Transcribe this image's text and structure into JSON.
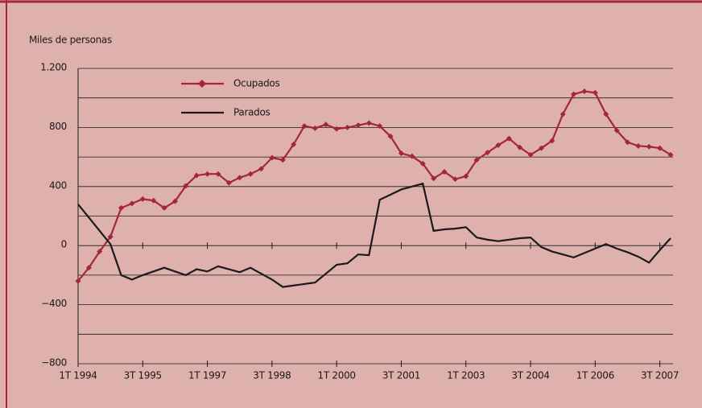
{
  "chart_data": {
    "type": "line",
    "y_axis_label": "Miles de personas",
    "categories": [
      "1T 1994",
      null,
      null,
      null,
      null,
      null,
      "3T 1995",
      null,
      null,
      null,
      null,
      null,
      "1T 1997",
      null,
      null,
      null,
      null,
      null,
      "3T 1998",
      null,
      null,
      null,
      null,
      null,
      "1T 2000",
      null,
      null,
      null,
      null,
      null,
      "3T 2001",
      null,
      null,
      null,
      null,
      null,
      "1T 2003",
      null,
      null,
      null,
      null,
      null,
      "3T 2004",
      null,
      null,
      null,
      null,
      null,
      "1T 2006",
      null,
      null,
      null,
      null,
      null,
      "3T 2007",
      null
    ],
    "series": [
      {
        "name": "Ocupados",
        "color": "#a3263a",
        "marker": "diamond",
        "values": [
          -240,
          -150,
          -40,
          60,
          255,
          285,
          315,
          305,
          255,
          300,
          405,
          475,
          485,
          485,
          425,
          460,
          485,
          520,
          595,
          580,
          685,
          810,
          795,
          820,
          790,
          800,
          815,
          830,
          810,
          740,
          625,
          605,
          555,
          455,
          500,
          450,
          470,
          580,
          630,
          680,
          725,
          665,
          615,
          660,
          710,
          890,
          1025,
          1045,
          1035,
          890,
          780,
          700,
          675,
          670,
          660,
          615
        ]
      },
      {
        "name": "Parados",
        "color": "#1a1a1a",
        "marker": "none",
        "values": [
          280,
          190,
          100,
          10,
          -200,
          -230,
          -200,
          -175,
          -150,
          -175,
          -200,
          -160,
          -175,
          -140,
          -160,
          -180,
          -150,
          -190,
          -230,
          -280,
          -270,
          -260,
          -250,
          -190,
          -130,
          -120,
          -60,
          -65,
          310,
          345,
          380,
          400,
          420,
          100,
          110,
          115,
          125,
          55,
          40,
          30,
          40,
          50,
          55,
          -10,
          -40,
          -60,
          -80,
          -50,
          -20,
          10,
          -20,
          -45,
          -75,
          -115,
          -30,
          50
        ]
      }
    ],
    "ylim": [
      -800,
      1200
    ],
    "yticks": [
      {
        "value": -800,
        "label": "−800"
      },
      {
        "value": -400,
        "label": "−400"
      },
      0,
      400,
      800,
      {
        "value": 1200,
        "label": "1.200"
      }
    ],
    "minor_yticks": [
      -600,
      -200,
      200,
      600,
      1000
    ],
    "grid": true
  }
}
